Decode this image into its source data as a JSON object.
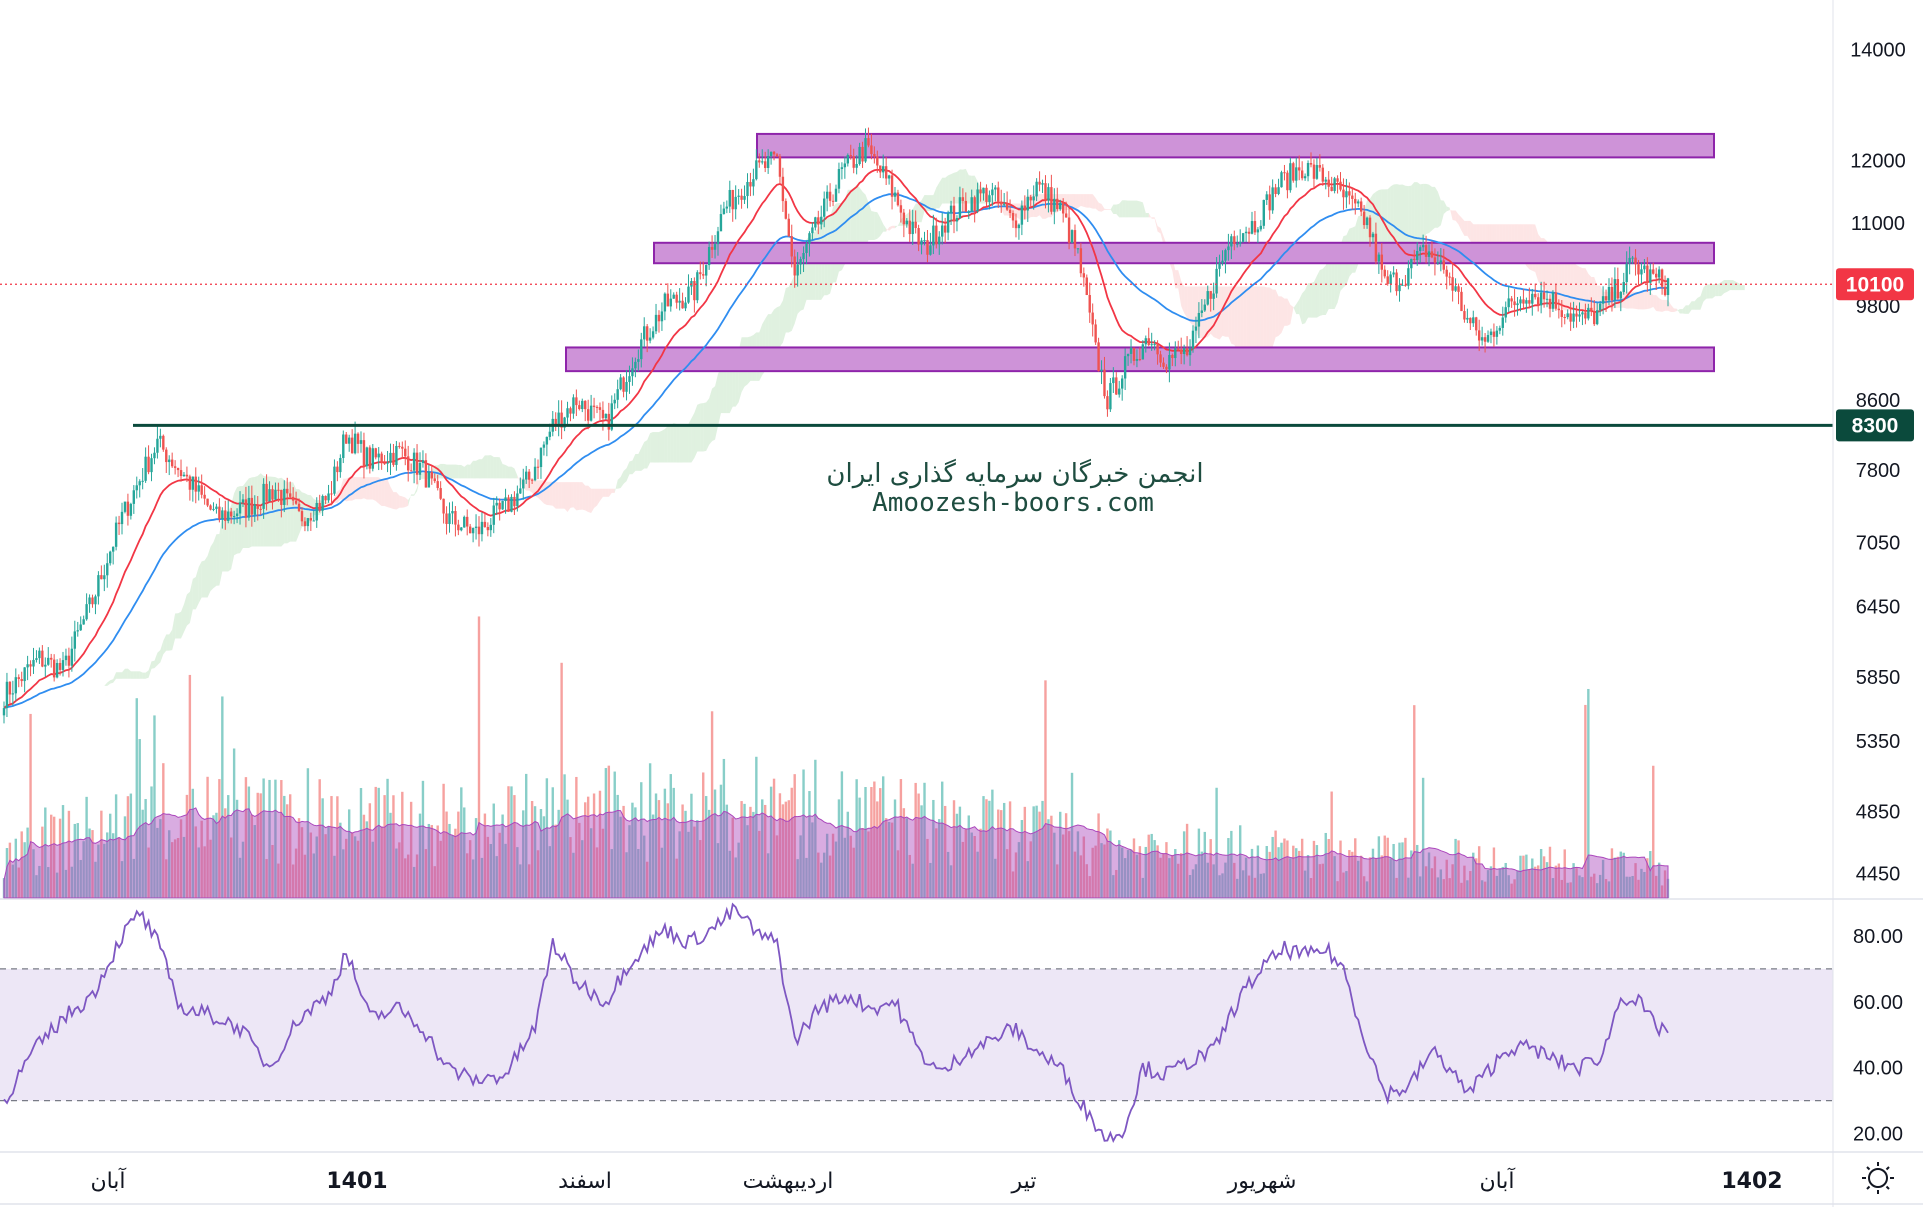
{
  "chart_data": {
    "type": "candlestick",
    "price_axis": {
      "scale": "log",
      "range": [
        4300,
        15000
      ],
      "ticks": [
        14000,
        12000,
        11000,
        9800,
        8600,
        7800,
        7050,
        6450,
        5850,
        5350,
        4850,
        4450
      ],
      "tick_labels": [
        "14000",
        "12000",
        "11000",
        "9800",
        "8600",
        "7800",
        "7050",
        "6450",
        "5850",
        "5350",
        "4850",
        "4450"
      ]
    },
    "time_axis": {
      "labels": [
        "آبان",
        "1401",
        "اسفند",
        "اردیبهشت",
        "تیر",
        "شهریور",
        "آبان",
        "1402"
      ],
      "year_labels": [
        "1401",
        "1402"
      ]
    },
    "last_price": {
      "value": 10100,
      "label": "10100",
      "color": "#f23645"
    },
    "support_line": {
      "value": 8300,
      "label": "8300",
      "color": "#0b4a3c"
    },
    "zones": [
      {
        "name": "top-resistance",
        "from": 12050,
        "to": 12450,
        "start_index": 0.32,
        "end_index": 0.74
      },
      {
        "name": "mid-resistance",
        "from": 10400,
        "to": 10700,
        "start_index": 0.28,
        "end_index": 0.74
      },
      {
        "name": "support-zone",
        "from": 8950,
        "to": 9250,
        "start_index": 0.25,
        "end_index": 0.74
      }
    ],
    "series_price_anchors": [
      [
        0,
        5700
      ],
      [
        12,
        6000
      ],
      [
        20,
        5900
      ],
      [
        30,
        6500
      ],
      [
        40,
        7300
      ],
      [
        52,
        8100
      ],
      [
        62,
        7700
      ],
      [
        72,
        7300
      ],
      [
        82,
        7400
      ],
      [
        92,
        7600
      ],
      [
        100,
        7300
      ],
      [
        110,
        7500
      ],
      [
        116,
        8200
      ],
      [
        124,
        7900
      ],
      [
        134,
        8000
      ],
      [
        142,
        7800
      ],
      [
        150,
        7300
      ],
      [
        160,
        7150
      ],
      [
        170,
        7400
      ],
      [
        178,
        7700
      ],
      [
        186,
        8300
      ],
      [
        194,
        8600
      ],
      [
        204,
        8300
      ],
      [
        214,
        9200
      ],
      [
        224,
        9800
      ],
      [
        234,
        10000
      ],
      [
        244,
        11200
      ],
      [
        254,
        11800
      ],
      [
        262,
        12000
      ],
      [
        268,
        10200
      ],
      [
        274,
        10800
      ],
      [
        284,
        11800
      ],
      [
        292,
        12200
      ],
      [
        300,
        11600
      ],
      [
        306,
        11000
      ],
      [
        312,
        10600
      ],
      [
        318,
        11000
      ],
      [
        326,
        11300
      ],
      [
        334,
        11500
      ],
      [
        342,
        11000
      ],
      [
        350,
        11600
      ],
      [
        358,
        11200
      ],
      [
        364,
        10500
      ],
      [
        370,
        9200
      ],
      [
        374,
        8600
      ],
      [
        380,
        9000
      ],
      [
        388,
        9400
      ],
      [
        394,
        9100
      ],
      [
        402,
        9200
      ],
      [
        408,
        9900
      ],
      [
        416,
        10800
      ],
      [
        424,
        11000
      ],
      [
        432,
        11600
      ],
      [
        440,
        11900
      ],
      [
        448,
        11700
      ],
      [
        454,
        11400
      ],
      [
        462,
        11000
      ],
      [
        468,
        10100
      ],
      [
        474,
        10200
      ],
      [
        482,
        10600
      ],
      [
        490,
        10200
      ],
      [
        496,
        9600
      ],
      [
        502,
        9300
      ],
      [
        508,
        9700
      ],
      [
        516,
        10000
      ],
      [
        524,
        9900
      ],
      [
        534,
        9600
      ],
      [
        540,
        9700
      ],
      [
        546,
        10000
      ],
      [
        552,
        10400
      ],
      [
        558,
        10200
      ],
      [
        564,
        10100
      ]
    ],
    "ema_fast_color": "#f23645",
    "ema_slow_color": "#2f8df0",
    "ichimoku": {
      "bull_color": "#a5d6a7",
      "bear_color": "#f8b4b4"
    },
    "volume": {
      "up_color": "#26a69a",
      "down_color": "#ef5350",
      "ma_color": "#ab47bc"
    },
    "rsi": {
      "range": [
        15,
        90
      ],
      "ticks": [
        80,
        60,
        40,
        20
      ],
      "tick_labels": [
        "80.00",
        "60.00",
        "40.00",
        "20.00"
      ],
      "upper_band": 70,
      "lower_band": 30,
      "line_color": "#7e57c2",
      "band_color": "#ede7f6",
      "anchors": [
        [
          0,
          30
        ],
        [
          10,
          45
        ],
        [
          20,
          55
        ],
        [
          30,
          62
        ],
        [
          40,
          80
        ],
        [
          46,
          87
        ],
        [
          52,
          78
        ],
        [
          60,
          58
        ],
        [
          70,
          56
        ],
        [
          80,
          52
        ],
        [
          90,
          40
        ],
        [
          100,
          55
        ],
        [
          110,
          62
        ],
        [
          116,
          75
        ],
        [
          124,
          55
        ],
        [
          134,
          58
        ],
        [
          142,
          52
        ],
        [
          150,
          40
        ],
        [
          160,
          36
        ],
        [
          170,
          38
        ],
        [
          180,
          52
        ],
        [
          186,
          78
        ],
        [
          194,
          66
        ],
        [
          204,
          60
        ],
        [
          212,
          72
        ],
        [
          224,
          82
        ],
        [
          232,
          78
        ],
        [
          240,
          82
        ],
        [
          248,
          88
        ],
        [
          256,
          80
        ],
        [
          262,
          78
        ],
        [
          268,
          48
        ],
        [
          276,
          58
        ],
        [
          286,
          62
        ],
        [
          294,
          58
        ],
        [
          302,
          60
        ],
        [
          310,
          45
        ],
        [
          318,
          38
        ],
        [
          326,
          45
        ],
        [
          334,
          48
        ],
        [
          342,
          52
        ],
        [
          350,
          45
        ],
        [
          358,
          40
        ],
        [
          366,
          28
        ],
        [
          374,
          18
        ],
        [
          380,
          22
        ],
        [
          386,
          40
        ],
        [
          394,
          38
        ],
        [
          402,
          42
        ],
        [
          410,
          45
        ],
        [
          418,
          60
        ],
        [
          426,
          70
        ],
        [
          434,
          76
        ],
        [
          442,
          74
        ],
        [
          448,
          76
        ],
        [
          454,
          70
        ],
        [
          460,
          52
        ],
        [
          468,
          32
        ],
        [
          476,
          34
        ],
        [
          484,
          45
        ],
        [
          490,
          40
        ],
        [
          496,
          32
        ],
        [
          502,
          38
        ],
        [
          510,
          46
        ],
        [
          518,
          46
        ],
        [
          526,
          42
        ],
        [
          534,
          40
        ],
        [
          542,
          44
        ],
        [
          548,
          62
        ],
        [
          554,
          60
        ],
        [
          560,
          52
        ],
        [
          564,
          52
        ]
      ]
    }
  },
  "watermark": {
    "line1": "انجمن خبرگان سرمایه گذاری ایران",
    "line2": "Amoozesh-boors.com"
  },
  "settings_icon": "sun-gear-icon"
}
